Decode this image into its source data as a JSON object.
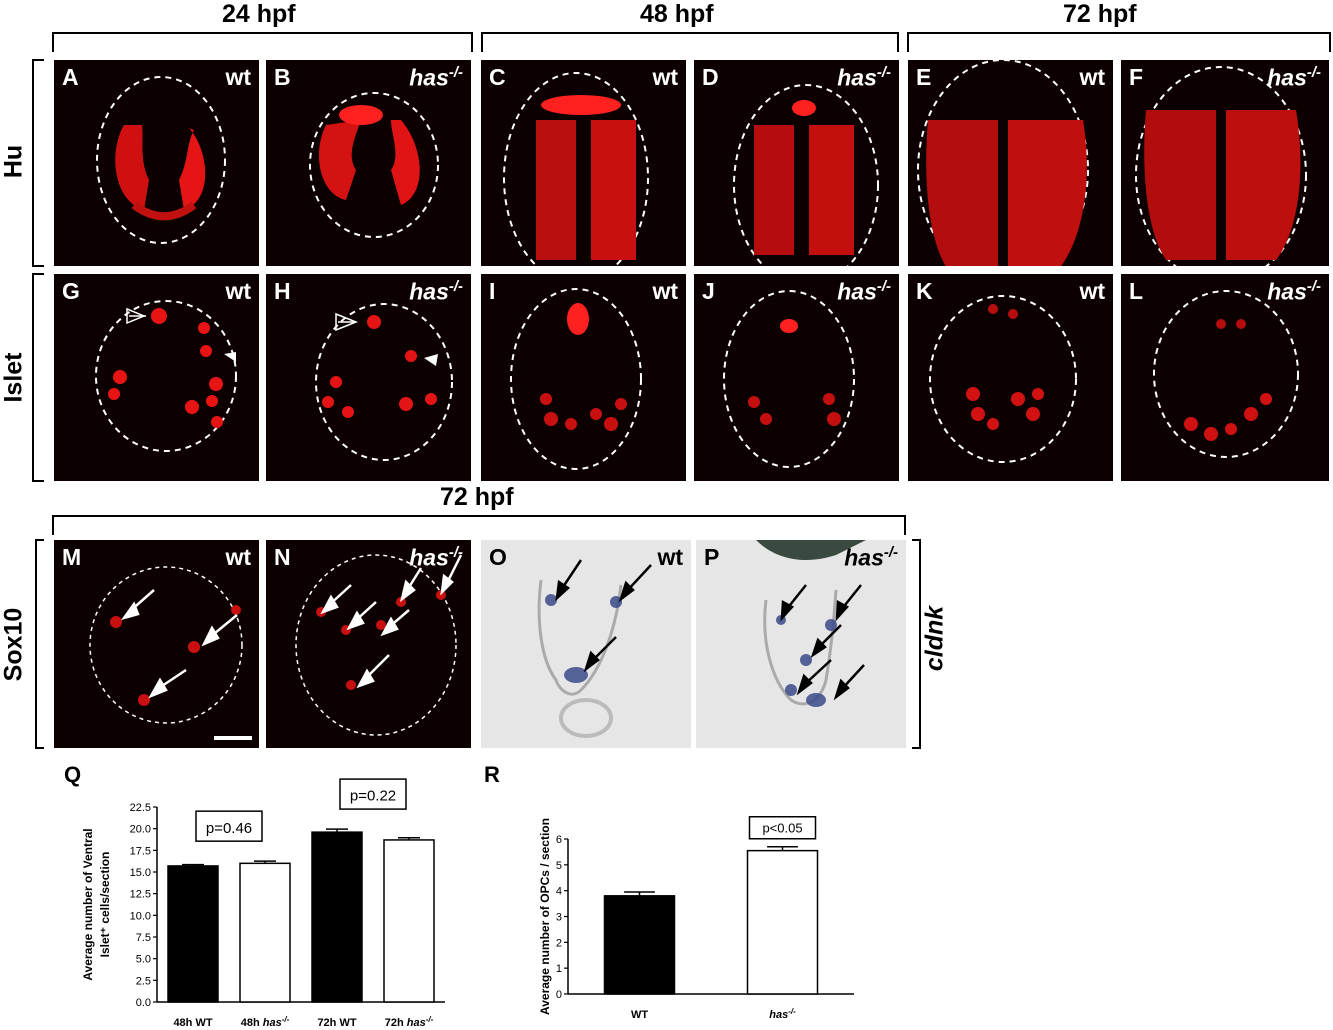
{
  "headers": {
    "h24": "24 hpf",
    "h48": "48 hpf",
    "h72": "72 hpf",
    "h72b": "72 hpf"
  },
  "rows": {
    "hu": "Hu",
    "islet": "Islet",
    "sox10": "Sox10",
    "cldnk": "cldnk"
  },
  "panels": [
    {
      "letter": "A",
      "genotype": "wt"
    },
    {
      "letter": "B",
      "genotype": "has-/-"
    },
    {
      "letter": "C",
      "genotype": "wt"
    },
    {
      "letter": "D",
      "genotype": "has-/-"
    },
    {
      "letter": "E",
      "genotype": "wt"
    },
    {
      "letter": "F",
      "genotype": "has-/-"
    },
    {
      "letter": "G",
      "genotype": "wt"
    },
    {
      "letter": "H",
      "genotype": "has-/-"
    },
    {
      "letter": "I",
      "genotype": "wt"
    },
    {
      "letter": "J",
      "genotype": "has-/-"
    },
    {
      "letter": "K",
      "genotype": "wt"
    },
    {
      "letter": "L",
      "genotype": "has-/-"
    },
    {
      "letter": "M",
      "genotype": "wt"
    },
    {
      "letter": "N",
      "genotype": "has-/-"
    },
    {
      "letter": "O",
      "genotype": "wt"
    },
    {
      "letter": "P",
      "genotype": "has-/-"
    }
  ],
  "colors": {
    "fluorescence": "#ff1a1a",
    "background": "#0c0000",
    "ish_stain": "#3a4a8a"
  },
  "chart_data": [
    {
      "panel": "Q",
      "type": "bar",
      "categories": [
        "48h WT",
        "48h has-/-",
        "72h WT",
        "72h has-/-"
      ],
      "values": [
        15.7,
        16.0,
        19.6,
        18.7
      ],
      "errors": [
        0.15,
        0.25,
        0.35,
        0.25
      ],
      "fills": [
        "black",
        "white",
        "black",
        "white"
      ],
      "ylabel": "Average number of Ventral Islet+ cells/section",
      "ylim": [
        0,
        22.5
      ],
      "yticks": [
        "0.0",
        "2.5",
        "5.0",
        "7.5",
        "10.0",
        "12.5",
        "15.0",
        "17.5",
        "20.0",
        "22.5"
      ],
      "annotations": [
        {
          "text": "p=0.46",
          "pair": [
            0,
            1
          ]
        },
        {
          "text": "p=0.22",
          "pair": [
            2,
            3
          ]
        }
      ]
    },
    {
      "panel": "R",
      "type": "bar",
      "categories": [
        "WT",
        "has-/-"
      ],
      "values": [
        3.8,
        5.55
      ],
      "errors": [
        0.15,
        0.15
      ],
      "fills": [
        "black",
        "white"
      ],
      "ylabel": "Average number of OPCs / section",
      "ylim": [
        0,
        6
      ],
      "yticks": [
        "0",
        "1",
        "2",
        "3",
        "4",
        "5",
        "6"
      ],
      "annotations": [
        {
          "text": "p<0.05",
          "pair": [
            1,
            1
          ]
        }
      ]
    }
  ]
}
